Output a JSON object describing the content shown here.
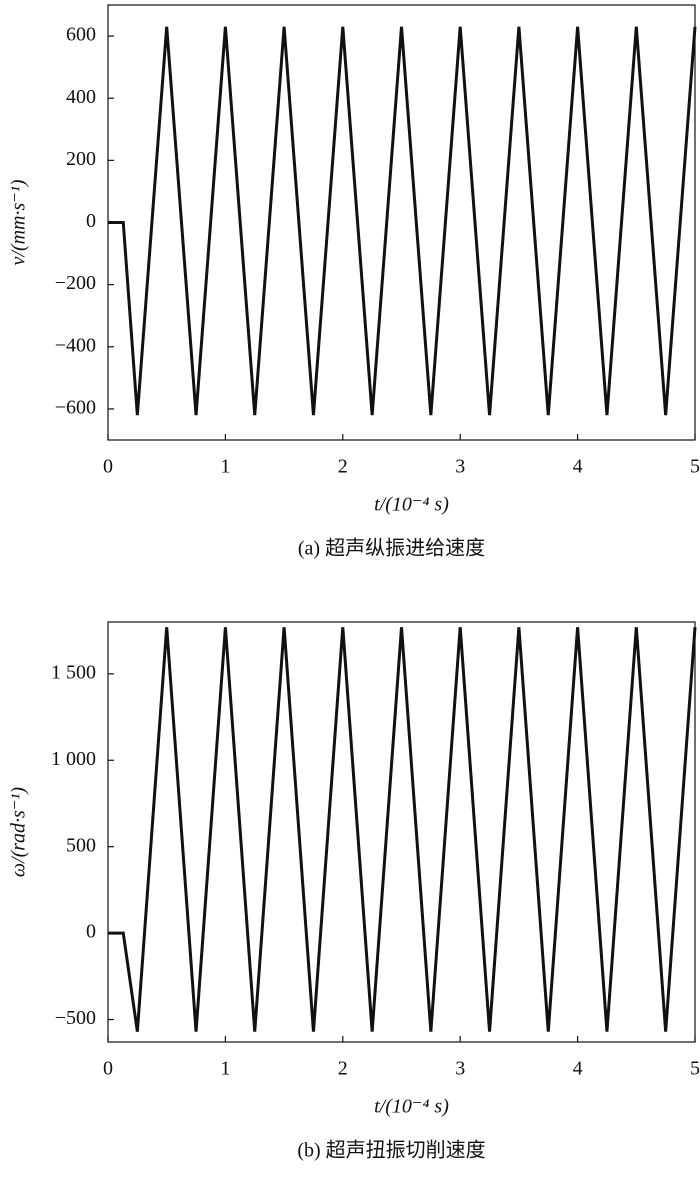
{
  "chart_data": [
    {
      "type": "line",
      "x": [
        0,
        0.13,
        0.25,
        0.5,
        0.75,
        1,
        1.25,
        1.5,
        1.75,
        2,
        2.25,
        2.5,
        2.75,
        3,
        3.25,
        3.5,
        3.75,
        4,
        4.25,
        4.5,
        4.75,
        5
      ],
      "values": [
        0,
        0,
        -620,
        630,
        -620,
        630,
        -620,
        630,
        -620,
        630,
        -620,
        630,
        -620,
        630,
        -620,
        630,
        -620,
        630,
        -620,
        630,
        -620,
        630
      ],
      "color": "#111111",
      "xlim": [
        0,
        5
      ],
      "xticks": [
        0,
        1,
        2,
        3,
        4,
        5
      ],
      "ylim": [
        -700,
        700
      ],
      "yticks": [
        {
          "value": -600,
          "label": "−600"
        },
        {
          "value": -400,
          "label": "−400"
        },
        {
          "value": -200,
          "label": "−200"
        },
        0,
        200,
        400,
        600
      ],
      "xlabel": "t/(10⁻⁴ s)",
      "ylabel": "v/(mm·s⁻¹)",
      "caption": "(a) 超声纵振进给速度"
    },
    {
      "type": "line",
      "x": [
        0,
        0.13,
        0.25,
        0.5,
        0.75,
        1,
        1.25,
        1.5,
        1.75,
        2,
        2.25,
        2.5,
        2.75,
        3,
        3.25,
        3.5,
        3.75,
        4,
        4.25,
        4.5,
        4.75,
        5
      ],
      "values": [
        0,
        0,
        -570,
        1770,
        -570,
        1770,
        -570,
        1770,
        -570,
        1770,
        -570,
        1770,
        -570,
        1770,
        -570,
        1770,
        -570,
        1770,
        -570,
        1770,
        -570,
        1770
      ],
      "color": "#111111",
      "xlim": [
        0,
        5
      ],
      "xticks": [
        0,
        1,
        2,
        3,
        4,
        5
      ],
      "ylim": [
        -630,
        1800
      ],
      "yticks": [
        {
          "value": -500,
          "label": "−500"
        },
        0,
        500,
        {
          "value": 1000,
          "label": "1 000"
        },
        {
          "value": 1500,
          "label": "1 500"
        }
      ],
      "xlabel": "t/(10⁻⁴ s)",
      "ylabel": "ω/(rad·s⁻¹)",
      "caption": "(b) 超声扭振切削速度"
    }
  ]
}
